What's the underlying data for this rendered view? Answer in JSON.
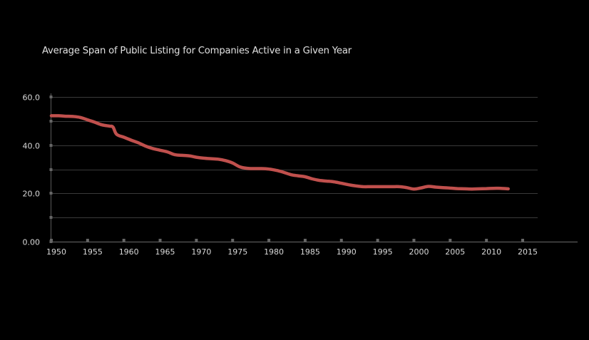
{
  "chart_data": {
    "type": "line",
    "title": "Average Span of Public Listing for Companies Active in a Given Year",
    "xlabel": "",
    "ylabel": "",
    "xlim": [
      1950,
      2020
    ],
    "ylim": [
      0,
      60
    ],
    "grid": true,
    "legend": "none",
    "x_ticks": [
      1950,
      1955,
      1960,
      1965,
      1970,
      1975,
      1980,
      1985,
      1990,
      1995,
      2000,
      2005,
      2010,
      2015
    ],
    "x_tick_labels": [
      "1950",
      "1955",
      "1960",
      "1965",
      "1970",
      "1975",
      "1980",
      "1985",
      "1990",
      "1995",
      "2000",
      "2005",
      "2010",
      "2015"
    ],
    "y_ticks": [
      0,
      10,
      20,
      30,
      40,
      50,
      60
    ],
    "y_tick_labels": [
      "0.00",
      "",
      "20.0",
      "",
      "40.0",
      "",
      "60.0"
    ],
    "series": [
      {
        "name": "Average Span of Public Listing",
        "color": "#c0504d",
        "x": [
          1950,
          1951,
          1952,
          1953,
          1954,
          1955,
          1956,
          1957,
          1958,
          1958.5,
          1959,
          1960,
          1961,
          1962,
          1963,
          1964,
          1965,
          1966,
          1967,
          1968,
          1969,
          1970,
          1971,
          1972,
          1973,
          1974,
          1975,
          1976,
          1977,
          1978,
          1979,
          1980,
          1981,
          1982,
          1983,
          1984,
          1985,
          1986,
          1987,
          1988,
          1989,
          1990,
          1991,
          1992,
          1993,
          1994,
          1995,
          1996,
          1997,
          1998,
          1999,
          2000,
          2001,
          2002,
          2003,
          2004,
          2005,
          2006,
          2007,
          2008,
          2009,
          2010,
          2011,
          2012,
          2013
        ],
        "values": [
          52.2,
          52.2,
          52.0,
          51.9,
          51.5,
          50.5,
          49.5,
          48.4,
          47.9,
          47.5,
          44.5,
          43.3,
          42.1,
          41.0,
          39.6,
          38.6,
          37.9,
          37.2,
          36.1,
          35.8,
          35.6,
          35.0,
          34.6,
          34.4,
          34.2,
          33.6,
          32.6,
          31.0,
          30.4,
          30.3,
          30.3,
          30.1,
          29.6,
          28.8,
          27.8,
          27.3,
          26.9,
          26.0,
          25.4,
          25.1,
          24.8,
          24.2,
          23.6,
          23.1,
          22.8,
          22.8,
          22.8,
          22.8,
          22.8,
          22.8,
          22.4,
          21.8,
          22.3,
          22.9,
          22.6,
          22.4,
          22.2,
          22.0,
          21.9,
          21.8,
          21.9,
          22.0,
          22.1,
          22.1,
          21.9
        ]
      }
    ]
  },
  "style": {
    "background": "#000000",
    "gridline_color": "#3a3a3a",
    "axis_color": "#5a5a5a",
    "label_color": "#d9d9d9"
  }
}
